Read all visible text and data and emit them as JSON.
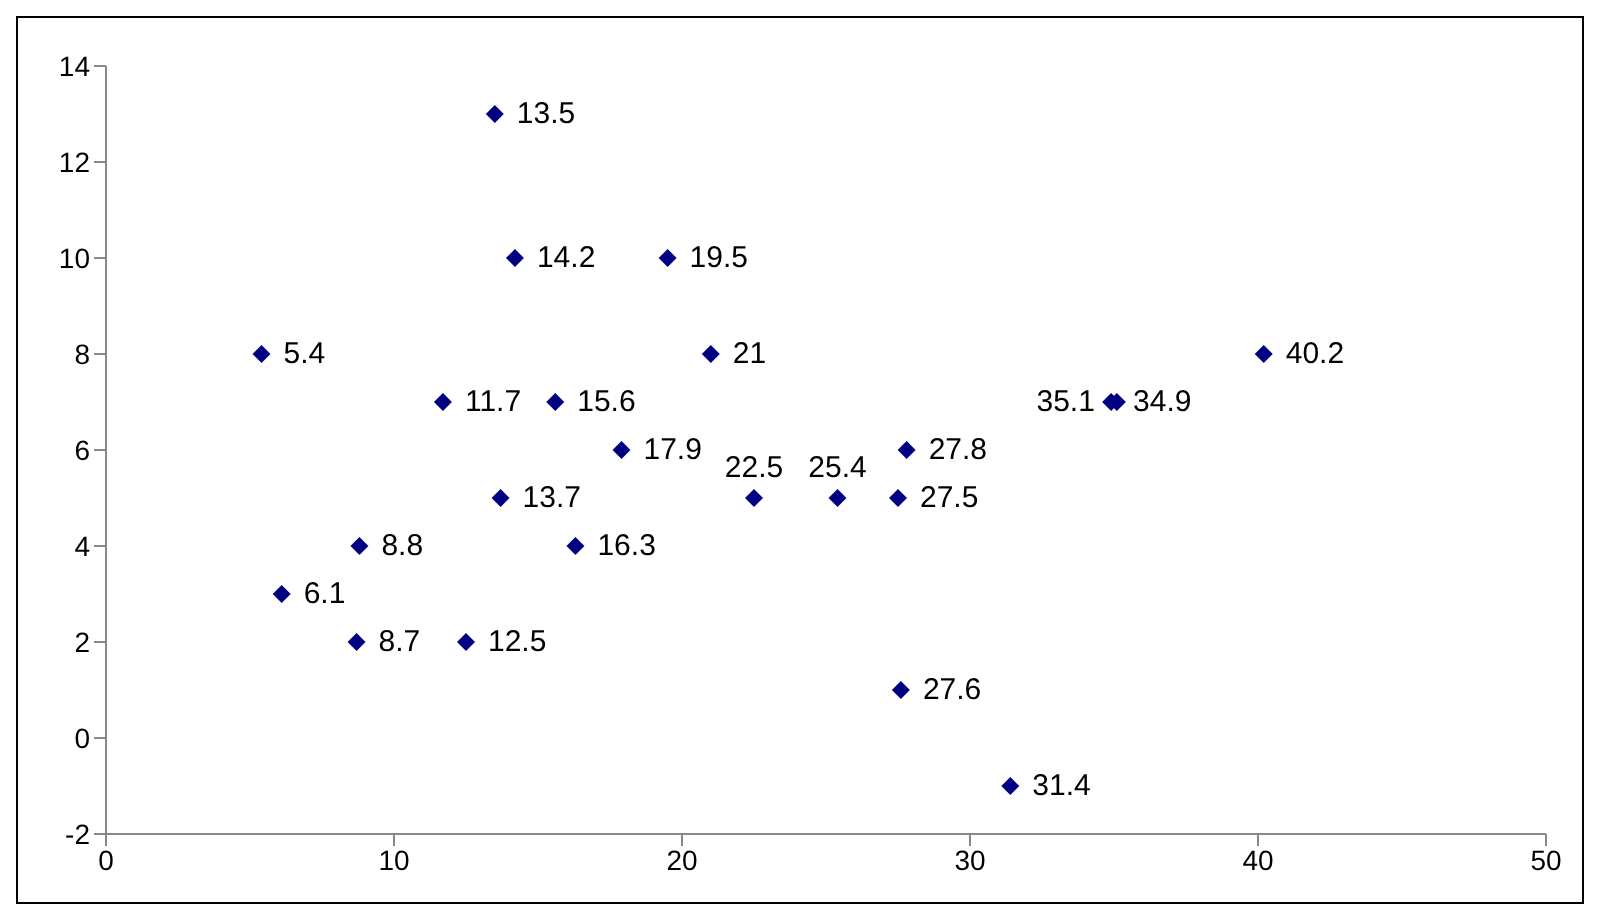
{
  "chart_data": {
    "type": "scatter",
    "marker": "diamond",
    "color": "#000080",
    "x": [
      13.5,
      14.2,
      19.5,
      5.4,
      21,
      40.2,
      11.7,
      15.6,
      34.9,
      35.1,
      17.9,
      27.8,
      13.7,
      22.5,
      25.4,
      27.5,
      8.8,
      16.3,
      6.1,
      8.7,
      12.5,
      27.6,
      31.4
    ],
    "values": [
      13,
      10,
      10,
      8,
      8,
      8,
      7,
      7,
      7,
      7,
      6,
      6,
      5,
      5,
      5,
      5,
      4,
      4,
      3,
      2,
      2,
      1,
      -1
    ],
    "annotations": [
      {
        "text": "13.5",
        "x": 13.5,
        "y": 13
      },
      {
        "text": "14.2",
        "x": 14.2,
        "y": 10
      },
      {
        "text": "19.5",
        "x": 19.5,
        "y": 10
      },
      {
        "text": "5.4",
        "x": 5.4,
        "y": 8
      },
      {
        "text": "21",
        "x": 21,
        "y": 8
      },
      {
        "text": "40.2",
        "x": 40.2,
        "y": 8
      },
      {
        "text": "11.7",
        "x": 11.7,
        "y": 7
      },
      {
        "text": "15.6",
        "x": 15.6,
        "y": 7
      },
      {
        "text": "34.9",
        "x": 34.9,
        "y": 7
      },
      {
        "text": "35.1",
        "x": 35.1,
        "y": 7
      },
      {
        "text": "17.9",
        "x": 17.9,
        "y": 6
      },
      {
        "text": "27.8",
        "x": 27.8,
        "y": 6
      },
      {
        "text": "13.7",
        "x": 13.7,
        "y": 5
      },
      {
        "text": "22.5",
        "x": 22.5,
        "y": 5
      },
      {
        "text": "25.4",
        "x": 25.4,
        "y": 5
      },
      {
        "text": "27.5",
        "x": 27.5,
        "y": 5
      },
      {
        "text": "8.8",
        "x": 8.8,
        "y": 4
      },
      {
        "text": "16.3",
        "x": 16.3,
        "y": 4
      },
      {
        "text": "6.1",
        "x": 6.1,
        "y": 3
      },
      {
        "text": "8.7",
        "x": 8.7,
        "y": 2
      },
      {
        "text": "12.5",
        "x": 12.5,
        "y": 2
      },
      {
        "text": "27.6",
        "x": 27.6,
        "y": 1
      },
      {
        "text": "31.4",
        "x": 31.4,
        "y": -1
      }
    ],
    "xlim": [
      0,
      50
    ],
    "xticks": [
      0,
      10,
      20,
      30,
      40,
      50
    ],
    "ylim": [
      -2,
      14
    ],
    "yticks": [
      -2,
      0,
      2,
      4,
      6,
      8,
      10,
      12,
      14
    ],
    "grid": false,
    "legend": false
  }
}
